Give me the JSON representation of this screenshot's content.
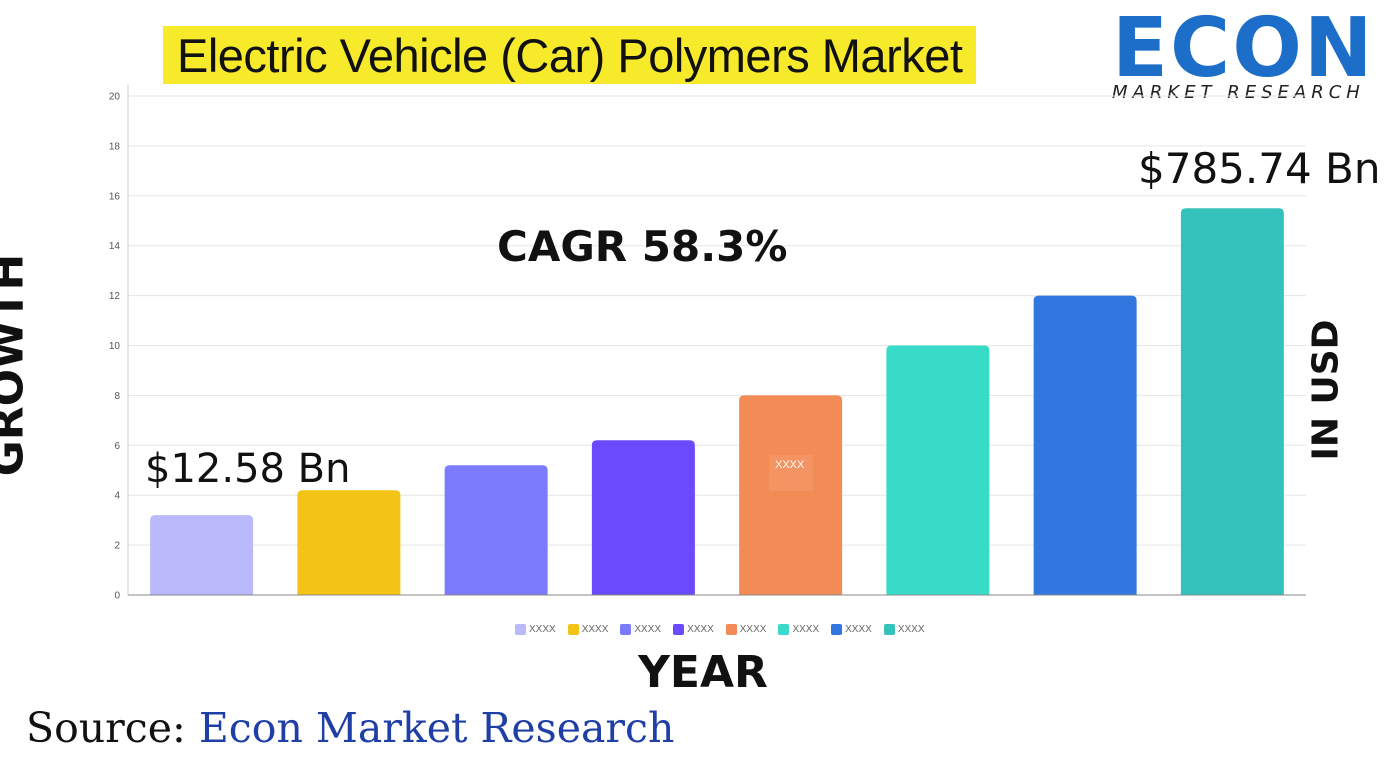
{
  "title": "Electric Vehicle (Car) Polymers Market",
  "logo": {
    "word": "ECON",
    "sub": "MARKET RESEARCH"
  },
  "ylabel": "GROWTH",
  "ylabel_right": "IN USD",
  "xlabel": "YEAR",
  "source": {
    "prefix": "Source:",
    "org": "Econ Market Research"
  },
  "annotations": {
    "start_value": "$12.58 Bn",
    "end_value": "$785.74 Bn",
    "cagr": "CAGR 58.3%",
    "bar_tooltip": "XXXX"
  },
  "chart_data": {
    "type": "bar",
    "categories": [
      "XXXX",
      "XXXX",
      "XXXX",
      "XXXX",
      "XXXX",
      "XXXX",
      "XXXX",
      "XXXX"
    ],
    "values": [
      3.2,
      4.2,
      5.2,
      6.2,
      8.0,
      10.0,
      12.0,
      15.5
    ],
    "colors": [
      "#b9b9fc",
      "#f3c415",
      "#7b7bfd",
      "#6a4afc",
      "#f28b55",
      "#38dbc8",
      "#3078e0",
      "#36c2bc"
    ],
    "ylim": [
      0,
      20
    ],
    "yticks": [
      0,
      2,
      4,
      6,
      8,
      10,
      12,
      14,
      16,
      18,
      20
    ],
    "grid": true,
    "legend": "bottom"
  }
}
